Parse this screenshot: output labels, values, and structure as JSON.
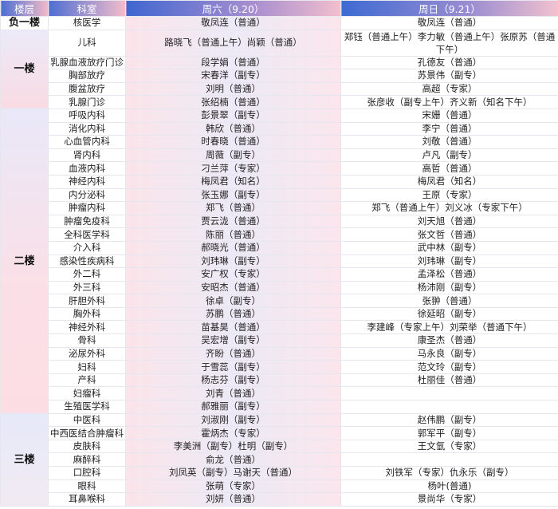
{
  "header": {
    "floor": "楼层",
    "dept": "科室",
    "sat": "周六（9.20）",
    "sun": "周日（9.21）"
  },
  "colors": {
    "header_blue": "#4d6fd3",
    "header_pink": "#f3b9c8",
    "sat_column": "#fbe4ea"
  },
  "floors": [
    {
      "name": "负一楼",
      "rows": [
        {
          "dept": "核医学",
          "sat": "敬凤连（普通）",
          "sun": "敬凤连（普通）"
        }
      ]
    },
    {
      "name": "一楼",
      "rows": [
        {
          "dept": "儿科",
          "sat": "路晓飞（普通上午）尚颖（普通）",
          "sun": "郑钰（普通上午）李力敏（普通上午）张原苏（普通下午）"
        },
        {
          "dept": "乳腺血液放疗门诊",
          "sat": "段学娟（普通）",
          "sun": "孔德友（普通）"
        },
        {
          "dept": "胸部放疗",
          "sat": "宋春洋（副专）",
          "sun": "苏景伟（副专）"
        },
        {
          "dept": "腹盆放疗",
          "sat": "刘明（普通）",
          "sun": "高超（专家）"
        },
        {
          "dept": "乳腺门诊",
          "sat": "张绍楠（普通）",
          "sun": "张彦收（副专上午）齐义新（知名下午）"
        }
      ]
    },
    {
      "name": "二楼",
      "rows": [
        {
          "dept": "呼吸内科",
          "sat": "彭景翠（副专）",
          "sun": "宋姗（普通）"
        },
        {
          "dept": "消化内科",
          "sat": "韩欣（普通）",
          "sun": "李宁（普通）"
        },
        {
          "dept": "心血管内科",
          "sat": "时春晓（普通）",
          "sun": "刘敬（普通）"
        },
        {
          "dept": "肾内科",
          "sat": "周薇（副专）",
          "sun": "卢凡（副专）"
        },
        {
          "dept": "血液内科",
          "sat": "刁兰萍（专家）",
          "sun": "高哲（普通）"
        },
        {
          "dept": "神经内科",
          "sat": "梅凤君（知名）",
          "sun": "梅凤君（知名）"
        },
        {
          "dept": "内分泌科",
          "sat": "张玉娜（副专）",
          "sun": "王原（专家）"
        },
        {
          "dept": "肿瘤内科",
          "sat": "郑飞（普通）",
          "sun": "郑飞（普通上午）刘义冰（专家下午）"
        },
        {
          "dept": "肿瘤免疫科",
          "sat": "贾云泷（普通）",
          "sun": "刘天旭（普通）"
        },
        {
          "dept": "全科医学科",
          "sat": "陈丽（普通）",
          "sun": "张文哲（普通）"
        },
        {
          "dept": "介入科",
          "sat": "郝晓光（普通）",
          "sun": "武中林（副专）"
        },
        {
          "dept": "感染性疾病科",
          "sat": "刘玮琳（副专）",
          "sun": "刘玮琳（副专）"
        },
        {
          "dept": "外二科",
          "sat": "安广权（专家）",
          "sun": "孟泽松（普通）"
        },
        {
          "dept": "外三科",
          "sat": "安昭杰（普通）",
          "sun": "杨沛刚（副专）"
        },
        {
          "dept": "肝胆外科",
          "sat": "徐卓（副专）",
          "sun": "张翀（普通）"
        },
        {
          "dept": "胸外科",
          "sat": "苏鹏（普通）",
          "sun": "徐延昭（副专）"
        },
        {
          "dept": "神经外科",
          "sat": "苗基昊（普通）",
          "sun": "李建峰（专家上午）刘荣举（普通下午）"
        },
        {
          "dept": "骨科",
          "sat": "吴宏增（副专）",
          "sun": "康圣杰（普通）"
        },
        {
          "dept": "泌尿外科",
          "sat": "齐盼（普通）",
          "sun": "马永良（副专）"
        },
        {
          "dept": "妇科",
          "sat": "于雪蕊（副专）",
          "sun": "范文玲（副专）"
        },
        {
          "dept": "产科",
          "sat": "杨志芬（副专）",
          "sun": "杜丽佳（普通）"
        },
        {
          "dept": "妇瘤科",
          "sat": "刘青（普通）",
          "sun": ""
        },
        {
          "dept": "生殖医学科",
          "sat": "郝雅丽（副专）",
          "sun": ""
        }
      ]
    },
    {
      "name": "三楼",
      "rows": [
        {
          "dept": "中医科",
          "sat": "刘淑刚（副专）",
          "sun": "赵伟鹏（副专）"
        },
        {
          "dept": "中西医结合肿瘤科",
          "sat": "霍炳杰（专家）",
          "sun": "郭军平（副专）"
        },
        {
          "dept": "皮肤科",
          "sat": "李美洲（副专）杜明（副专）",
          "sun": "王文氫（专家）"
        },
        {
          "dept": "麻醉科",
          "sat": "俞龙（普通）",
          "sun": ""
        },
        {
          "dept": "口腔科",
          "sat": "刘凤英（副专）马谢天（普通）",
          "sun": "刘铁军（专家）仇永乐（副专）"
        },
        {
          "dept": "眼科",
          "sat": "张萌（专家）",
          "sun": "杨叶(普通)"
        },
        {
          "dept": "耳鼻喉科",
          "sat": "刘妍（普通）",
          "sun": "景尚华（专家）"
        }
      ]
    }
  ]
}
